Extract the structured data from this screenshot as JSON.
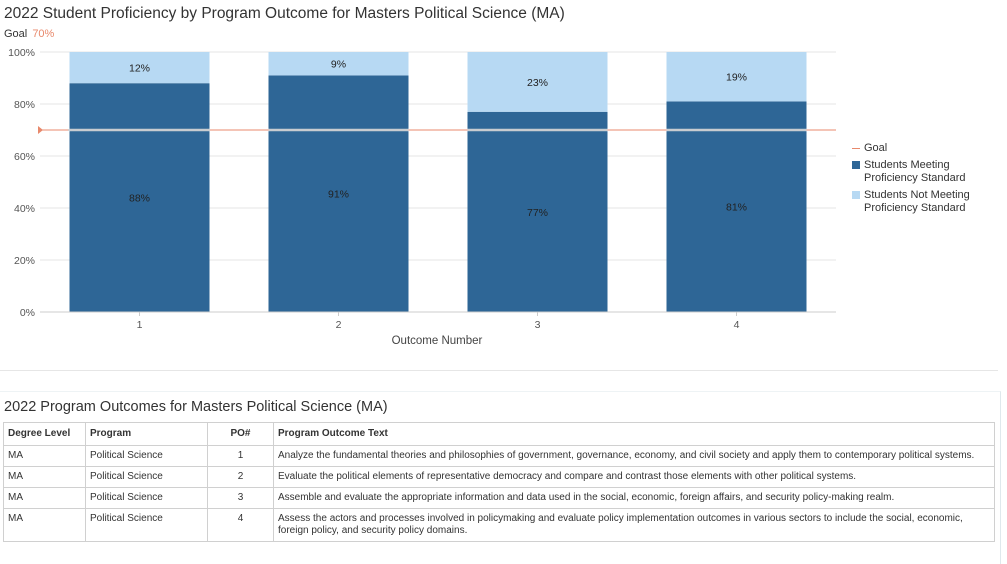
{
  "chart": {
    "title": "2022 Student Proficiency by Program Outcome for Masters Political Science (MA)",
    "goal_label": "Goal",
    "goal_value_label": "70%"
  },
  "chart_data": {
    "type": "bar",
    "stacked": true,
    "categories": [
      "1",
      "2",
      "3",
      "4"
    ],
    "series": [
      {
        "name": "Students Meeting Proficiency Standard",
        "values": [
          88,
          91,
          77,
          81
        ],
        "labels": [
          "88%",
          "91%",
          "77%",
          "81%"
        ],
        "color": "#2e6696"
      },
      {
        "name": "Students Not Meeting Proficiency Standard",
        "values": [
          12,
          9,
          23,
          19
        ],
        "labels": [
          "12%",
          "9%",
          "23%",
          "19%"
        ],
        "color": "#b7d9f3"
      }
    ],
    "goal": {
      "name": "Goal",
      "value": 70,
      "color": "#e8896c"
    },
    "xlabel": "Outcome Number",
    "ylabel": "",
    "ylim": [
      0,
      100
    ],
    "yticks": [
      "0%",
      "20%",
      "40%",
      "60%",
      "80%",
      "100%"
    ],
    "grid": true,
    "legend_position": "right"
  },
  "legend": {
    "items": [
      {
        "label": "Goal",
        "color": "#e8896c",
        "kind": "line"
      },
      {
        "label": "Students Meeting Proficiency Standard",
        "color": "#2e6696",
        "kind": "box"
      },
      {
        "label": "Students Not Meeting Proficiency Standard",
        "color": "#b7d9f3",
        "kind": "box"
      }
    ]
  },
  "table": {
    "title": "2022 Program Outcomes for Masters Political Science (MA)",
    "headers": {
      "level": "Degree Level",
      "program": "Program",
      "po": "PO#",
      "text": "Program Outcome Text"
    },
    "rows": [
      {
        "level": "MA",
        "program": "Political Science",
        "po": "1",
        "text": "Analyze the fundamental theories and philosophies of government, governance, economy, and civil society and apply them to contemporary political systems."
      },
      {
        "level": "MA",
        "program": "Political Science",
        "po": "2",
        "text": "Evaluate the political elements of representative democracy and compare and contrast those elements with other political systems."
      },
      {
        "level": "MA",
        "program": "Political Science",
        "po": "3",
        "text": "Assemble and evaluate the appropriate information and data used in the social, economic, foreign affairs, and security policy-making realm."
      },
      {
        "level": "MA",
        "program": "Political Science",
        "po": "4",
        "text": "Assess the actors and processes involved in policymaking and evaluate policy implementation outcomes in various sectors to include the social, economic, foreign policy, and security policy domains."
      }
    ]
  }
}
